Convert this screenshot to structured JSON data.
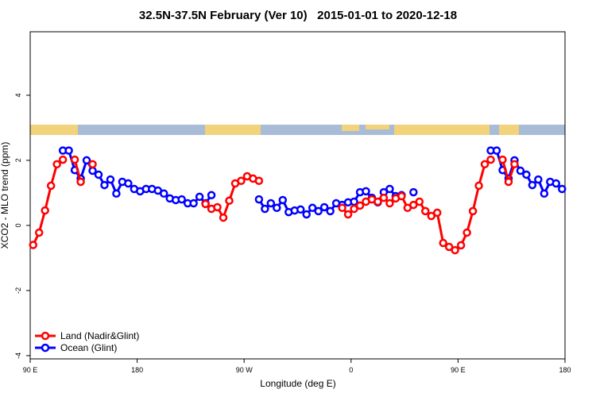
{
  "chart_data": {
    "type": "line",
    "title": "32.5N-37.5N February (Ver 10)   2015-01-01 to 2020-12-18",
    "x_label": "Longitude (deg E)",
    "y_label": "XCO2 - MLO trend (ppm)",
    "x": [
      92.5,
      97.5,
      102.5,
      107.5,
      112.5,
      117.5,
      122.5,
      127.5,
      132.5,
      137.5,
      142.5,
      147.5,
      152.5,
      157.5,
      162.5,
      167.5,
      172.5,
      177.5,
      182.5,
      187.5,
      192.5,
      197.5,
      202.5,
      207.5,
      212.5,
      217.5,
      222.5,
      227.5,
      232.5,
      237.5,
      242.5,
      247.5,
      252.5,
      257.5,
      262.5,
      267.5,
      272.5,
      277.5,
      282.5,
      287.5,
      292.5,
      297.5,
      302.5,
      307.5,
      312.5,
      317.5,
      322.5,
      327.5,
      332.5,
      337.5,
      342.5,
      347.5,
      352.5,
      357.5,
      362.5,
      367.5,
      372.5,
      377.5,
      382.5,
      387.5,
      392.5,
      397.5,
      402.5,
      407.5,
      412.5,
      417.5,
      422.5,
      427.5,
      432.5,
      437.5,
      442.5,
      447.5,
      452.5,
      457.5,
      462.5,
      467.5,
      472.5,
      477.5,
      482.5,
      487.5,
      492.5,
      497.5,
      502.5,
      507.5,
      512.5,
      517.5,
      522.5,
      527.5,
      532.5,
      537.5
    ],
    "series": [
      {
        "name": "Ocean (Glint)",
        "color": "#0000ff",
        "values": [
          null,
          null,
          null,
          null,
          null,
          2.3,
          2.3,
          1.7,
          1.44,
          2.0,
          1.68,
          1.56,
          1.24,
          1.41,
          0.98,
          1.34,
          1.29,
          1.12,
          1.05,
          1.12,
          1.12,
          1.07,
          0.98,
          0.83,
          0.78,
          0.8,
          0.68,
          0.68,
          0.88,
          0.68,
          0.93,
          null,
          null,
          null,
          null,
          null,
          null,
          null,
          0.8,
          0.51,
          0.68,
          0.54,
          0.78,
          0.41,
          0.46,
          0.49,
          0.34,
          0.54,
          0.44,
          0.56,
          0.44,
          0.68,
          0.63,
          0.71,
          0.73,
          1.02,
          1.05,
          0.85,
          0.71,
          1.02,
          1.12,
          0.9,
          0.93,
          null,
          1.02,
          null,
          null,
          null,
          null,
          null,
          null,
          null,
          null,
          null,
          null,
          null,
          null,
          2.3,
          2.3,
          1.7,
          1.44,
          2.0,
          1.68,
          1.56,
          1.24,
          1.41,
          0.98,
          1.34,
          1.29,
          1.12
        ]
      },
      {
        "name": "Land (Nadir&Glint)",
        "color": "#ff0000",
        "values": [
          -0.6,
          -0.22,
          0.46,
          1.22,
          1.88,
          2.02,
          null,
          2.02,
          1.34,
          null,
          1.88,
          null,
          null,
          null,
          null,
          null,
          null,
          null,
          null,
          null,
          null,
          null,
          null,
          null,
          null,
          null,
          null,
          null,
          null,
          0.66,
          0.51,
          0.56,
          0.24,
          0.76,
          1.29,
          1.37,
          1.51,
          1.44,
          1.37,
          null,
          null,
          null,
          null,
          null,
          null,
          null,
          null,
          null,
          null,
          null,
          null,
          null,
          0.54,
          0.34,
          0.51,
          0.61,
          0.73,
          0.8,
          0.73,
          0.85,
          0.68,
          0.83,
          0.9,
          0.54,
          0.63,
          0.73,
          0.44,
          0.29,
          0.39,
          -0.54,
          -0.66,
          -0.76,
          -0.61,
          -0.22,
          0.44,
          1.22,
          1.88,
          2.02,
          null,
          2.02,
          1.34,
          1.88,
          null,
          null,
          null,
          null,
          null,
          null,
          null,
          null
        ]
      }
    ],
    "xlim": [
      90,
      540
    ],
    "xticks": [
      {
        "value": 90,
        "label": "90 E"
      },
      180,
      {
        "value": 270,
        "label": "90 W"
      },
      {
        "value": 360,
        "label": "0"
      },
      {
        "value": 450,
        "label": "90 E"
      },
      {
        "value": 540,
        "label": "180"
      }
    ],
    "ylim": [
      -4.1,
      5.95
    ],
    "yticks": [
      -4,
      -2,
      0,
      2,
      4
    ],
    "legend": "bottom-left"
  }
}
